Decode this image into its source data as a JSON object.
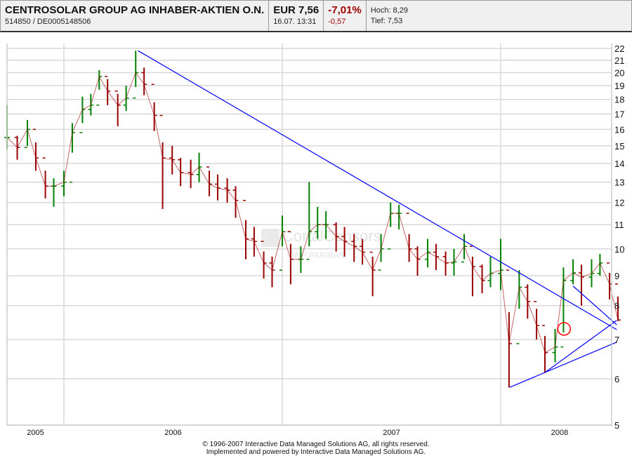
{
  "header": {
    "title": "CENTROSOLAR GROUP AG INHABER-AKTIEN O.N.",
    "ids": "514850  /  DE0005148506",
    "price": "EUR 7,56",
    "datetime": "16.07. 13:31",
    "change_pct": "-7,01%",
    "change_abs": "-0,57",
    "high": "Hoch: 8,29",
    "low": "Tief: 7,53"
  },
  "watermark": {
    "line1": "CortalConsors",
    "line2": "BNP PARIBAS"
  },
  "footer": {
    "line1": "© 1996-2007 Interactive Data Managed Solutions AG, all rights reserved.",
    "line2": "Implemented and powered by Interactive Data Managed Solutions AG."
  },
  "colors": {
    "up": "#008000",
    "down": "#990000",
    "trendline": "#0000ff",
    "marker": "#ff0000",
    "grid": "#d8d8d8"
  },
  "chart_data": {
    "type": "ohlc",
    "y_scale": "log",
    "ylim": [
      5,
      22
    ],
    "y_ticks": [
      5,
      6,
      7,
      8,
      9,
      10,
      11,
      12,
      13,
      14,
      15,
      16,
      17,
      18,
      19,
      20,
      21,
      22
    ],
    "xlim": [
      "2005-09-28",
      "2008-07-16"
    ],
    "x_tick_labels": [
      "2005",
      "2006",
      "2007",
      "2008"
    ],
    "grid": true,
    "y_axis_side": "right",
    "columns": [
      "date",
      "low",
      "high",
      "close"
    ],
    "bars": [
      [
        "2005-09-28",
        14.8,
        17.6,
        15.5
      ],
      [
        "2005-10-15",
        14.2,
        15.6,
        14.9
      ],
      [
        "2005-11-01",
        15.0,
        16.6,
        16.0
      ],
      [
        "2005-11-15",
        13.6,
        15.2,
        14.3
      ],
      [
        "2005-12-01",
        12.2,
        13.6,
        12.8
      ],
      [
        "2005-12-15",
        11.8,
        13.2,
        12.8
      ],
      [
        "2006-01-01",
        12.3,
        13.6,
        13.0
      ],
      [
        "2006-01-15",
        14.6,
        16.4,
        15.8
      ],
      [
        "2006-02-01",
        16.4,
        18.2,
        17.3
      ],
      [
        "2006-02-15",
        16.9,
        18.4,
        17.6
      ],
      [
        "2006-03-01",
        18.7,
        20.2,
        19.7
      ],
      [
        "2006-03-15",
        17.6,
        19.5,
        18.6
      ],
      [
        "2006-04-01",
        16.2,
        18.4,
        17.6
      ],
      [
        "2006-04-15",
        17.2,
        19.0,
        18.1
      ],
      [
        "2006-05-01",
        18.9,
        21.8,
        20.0
      ],
      [
        "2006-05-15",
        18.3,
        20.4,
        19.1
      ],
      [
        "2006-06-01",
        15.9,
        17.8,
        16.9
      ],
      [
        "2006-06-15",
        11.7,
        15.2,
        14.3
      ],
      [
        "2006-07-01",
        13.4,
        15.0,
        14.2
      ],
      [
        "2006-07-15",
        12.8,
        14.3,
        13.5
      ],
      [
        "2006-08-01",
        12.7,
        14.2,
        13.4
      ],
      [
        "2006-08-15",
        13.0,
        14.6,
        13.8
      ],
      [
        "2006-09-01",
        12.3,
        13.6,
        12.9
      ],
      [
        "2006-09-15",
        12.1,
        13.4,
        12.7
      ],
      [
        "2006-10-01",
        12.0,
        13.2,
        12.6
      ],
      [
        "2006-10-15",
        11.3,
        12.8,
        12.1
      ],
      [
        "2006-11-01",
        9.6,
        11.2,
        10.4
      ],
      [
        "2006-11-15",
        9.7,
        10.9,
        10.3
      ],
      [
        "2006-12-01",
        8.9,
        9.9,
        9.46
      ],
      [
        "2006-12-15",
        8.6,
        9.7,
        9.2
      ],
      [
        "2007-01-01",
        10.1,
        11.4,
        10.7
      ],
      [
        "2007-01-15",
        8.7,
        10.2,
        9.6
      ],
      [
        "2007-02-01",
        9.1,
        10.1,
        9.6
      ],
      [
        "2007-02-15",
        10.1,
        13.0,
        10.7
      ],
      [
        "2007-03-01",
        10.4,
        11.8,
        11.0
      ],
      [
        "2007-03-15",
        10.4,
        11.6,
        11.0
      ],
      [
        "2007-04-01",
        9.9,
        11.1,
        10.5
      ],
      [
        "2007-04-15",
        9.7,
        10.9,
        10.3
      ],
      [
        "2007-05-01",
        9.5,
        10.6,
        10.1
      ],
      [
        "2007-05-15",
        9.4,
        10.4,
        9.87
      ],
      [
        "2007-06-01",
        8.3,
        9.7,
        9.2
      ],
      [
        "2007-06-15",
        9.5,
        10.6,
        10.0
      ],
      [
        "2007-07-01",
        10.9,
        12.0,
        11.5
      ],
      [
        "2007-07-15",
        10.8,
        11.9,
        11.5
      ],
      [
        "2007-08-01",
        9.5,
        10.6,
        10.0
      ],
      [
        "2007-08-15",
        9.0,
        10.1,
        9.6
      ],
      [
        "2007-09-01",
        9.3,
        10.4,
        9.87
      ],
      [
        "2007-09-15",
        9.2,
        10.2,
        9.7
      ],
      [
        "2007-10-01",
        9.0,
        9.9,
        9.46
      ],
      [
        "2007-10-15",
        9.0,
        10.0,
        9.5
      ],
      [
        "2007-11-01",
        9.6,
        10.6,
        10.1
      ],
      [
        "2007-11-15",
        8.3,
        9.7,
        9.33
      ],
      [
        "2007-12-01",
        8.4,
        9.4,
        8.83
      ],
      [
        "2007-12-15",
        8.6,
        9.7,
        9.08
      ],
      [
        "2008-01-01",
        8.5,
        10.4,
        9.2
      ],
      [
        "2008-01-15",
        5.8,
        7.8,
        6.89
      ],
      [
        "2008-02-01",
        7.9,
        9.2,
        8.6
      ],
      [
        "2008-02-15",
        7.6,
        8.7,
        8.13
      ],
      [
        "2008-03-01",
        7.0,
        7.9,
        7.4
      ],
      [
        "2008-03-15",
        6.15,
        7.1,
        6.65
      ],
      [
        "2008-04-01",
        6.4,
        7.3,
        6.8
      ],
      [
        "2008-04-15",
        7.2,
        9.3,
        8.83
      ],
      [
        "2008-05-01",
        8.7,
        9.6,
        9.1
      ],
      [
        "2008-05-15",
        8.0,
        9.4,
        8.95
      ],
      [
        "2008-06-01",
        8.6,
        9.6,
        9.08
      ],
      [
        "2008-06-15",
        9.0,
        9.8,
        9.46
      ],
      [
        "2008-07-01",
        8.2,
        9.1,
        8.71
      ],
      [
        "2008-07-15",
        7.53,
        8.29,
        7.56
      ]
    ],
    "trendlines": [
      [
        [
          "2006-05-05",
          21.8
        ],
        [
          "2008-07-13",
          7.28
        ]
      ],
      [
        [
          "2008-05-01",
          8.64
        ],
        [
          "2008-07-13",
          7.42
        ]
      ],
      [
        [
          "2008-01-16",
          5.8
        ],
        [
          "2008-07-13",
          6.93
        ]
      ],
      [
        [
          "2008-03-15",
          6.15
        ],
        [
          "2008-07-13",
          7.55
        ]
      ]
    ],
    "annotations": [
      {
        "type": "circle",
        "date": "2008-04-16",
        "price": 7.3
      }
    ]
  }
}
